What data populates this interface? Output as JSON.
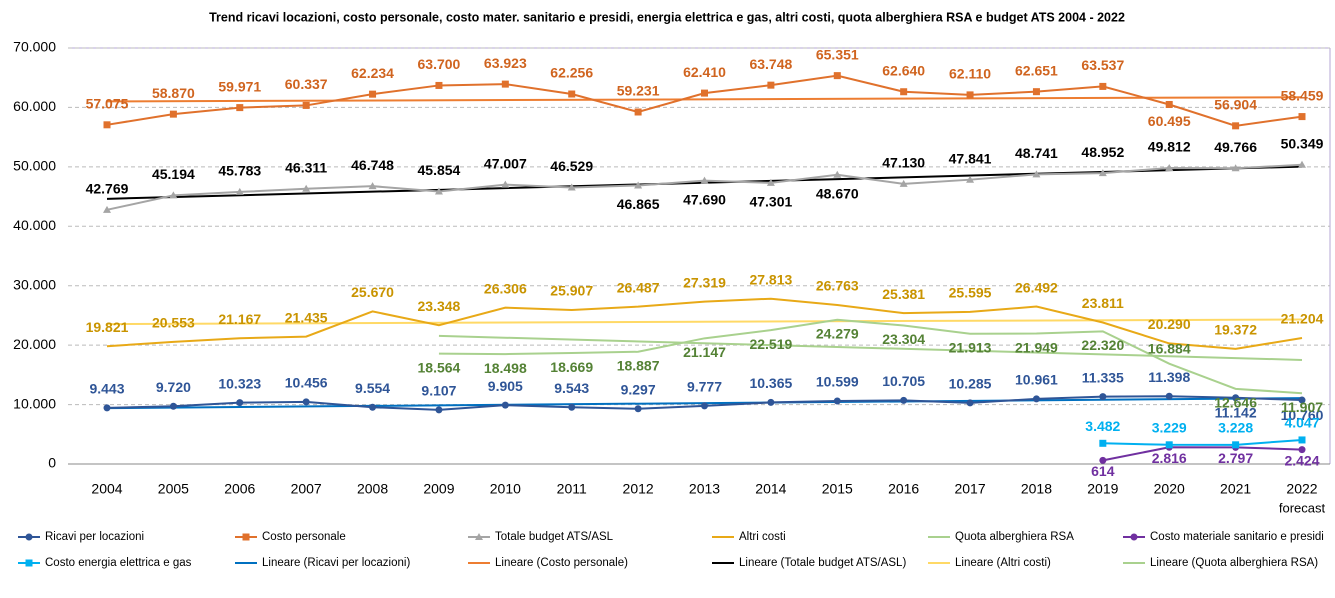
{
  "chart_data": {
    "type": "line",
    "title": "Trend ricavi locazioni, costo personale, costo mater. sanitario e presidi, energia elettrica e gas, altri costi, quota alberghiera RSA e budget ATS 2004 - 2022",
    "categories": [
      "2004",
      "2005",
      "2006",
      "2007",
      "2008",
      "2009",
      "2010",
      "2011",
      "2012",
      "2013",
      "2014",
      "2015",
      "2016",
      "2017",
      "2018",
      "2019",
      "2020",
      "2021",
      "2022"
    ],
    "x_note": "forecast",
    "ylim": [
      0,
      70000
    ],
    "yticks": [
      0,
      {
        "value": 10000,
        "label": "10.000"
      },
      {
        "value": 20000,
        "label": "20.000"
      },
      {
        "value": 30000,
        "label": "30.000"
      },
      {
        "value": 40000,
        "label": "40.000"
      },
      {
        "value": 50000,
        "label": "50.000"
      },
      {
        "value": 60000,
        "label": "60.000"
      },
      {
        "value": 70000,
        "label": "70.000"
      }
    ],
    "grid": true,
    "legend": "bottom",
    "series": [
      {
        "name": "Ricavi per locazioni",
        "color": "#2f5597",
        "label_color": "#2f5597",
        "marker": "circle",
        "values": [
          9443,
          9720,
          10323,
          10456,
          9554,
          9107,
          9905,
          9543,
          9297,
          9777,
          10365,
          10599,
          10705,
          10285,
          10961,
          11335,
          11398,
          11142,
          10760
        ],
        "value_labels": [
          "9.443",
          "9.720",
          "10.323",
          "10.456",
          "9.554",
          "9.107",
          "9.905",
          "9.543",
          "9.297",
          "9.777",
          "10.365",
          "10.599",
          "10.705",
          "10.285",
          "10.961",
          "11.335",
          "11.398",
          "11.142",
          "10.760"
        ]
      },
      {
        "name": "Costo personale",
        "color": "#e0712c",
        "label_color": "#d0641f",
        "marker": "square",
        "values": [
          57075,
          58870,
          59971,
          60337,
          62234,
          63700,
          63923,
          62256,
          59231,
          62410,
          63748,
          65351,
          62640,
          62110,
          62651,
          63537,
          60495,
          56904,
          58459
        ],
        "value_labels": [
          "57.075",
          "58.870",
          "59.971",
          "60.337",
          "62.234",
          "63.700",
          "63.923",
          "62.256",
          "59.231",
          "62.410",
          "63.748",
          "65.351",
          "62.640",
          "62.110",
          "62.651",
          "63.537",
          "60.495",
          "56.904",
          "58.459"
        ]
      },
      {
        "name": "Totale budget ATS/ASL",
        "color": "#a5a5a5",
        "label_color": "#000000",
        "marker": "triangle",
        "values": [
          42769,
          45194,
          45783,
          46311,
          46748,
          45854,
          47007,
          46529,
          46865,
          47690,
          47301,
          48670,
          47130,
          47841,
          48741,
          48952,
          49812,
          49766,
          50349
        ],
        "value_labels": [
          "42.769",
          "45.194",
          "45.783",
          "46.311",
          "46.748",
          "45.854",
          "47.007",
          "46.529",
          "46.865",
          "47.690",
          "47.301",
          "48.670",
          "47.130",
          "47.841",
          "48.741",
          "48.952",
          "49.812",
          "49.766",
          "50.349"
        ]
      },
      {
        "name": "Altri costi",
        "color": "#e8a917",
        "label_color": "#c99400",
        "marker": "none",
        "values": [
          19821,
          20553,
          21167,
          21435,
          25670,
          23348,
          26306,
          25907,
          26487,
          27319,
          27813,
          26763,
          25381,
          25595,
          26492,
          23811,
          20290,
          19372,
          21204
        ],
        "value_labels": [
          "19.821",
          "20.553",
          "21.167",
          "21.435",
          "25.670",
          "23.348",
          "26.306",
          "25.907",
          "26.487",
          "27.319",
          "27.813",
          "26.763",
          "25.381",
          "25.595",
          "26.492",
          "23.811",
          "20.290",
          "19.372",
          "21.204"
        ]
      },
      {
        "name": "Quota alberghiera RSA",
        "color": "#a9d18e",
        "label_color": "#548235",
        "marker": "none",
        "values": [
          null,
          null,
          null,
          null,
          null,
          18564,
          18498,
          18669,
          18887,
          21147,
          22519,
          24279,
          23304,
          21913,
          21949,
          22320,
          16884,
          12646,
          11907
        ],
        "value_labels": [
          null,
          null,
          null,
          null,
          null,
          "18.564",
          "18.498",
          "18.669",
          "18.887",
          "21.147",
          "22.519",
          "24.279",
          "23.304",
          "21.913",
          "21.949",
          "22.320",
          "16.884",
          "12.646",
          "11.907"
        ]
      },
      {
        "name": "Costo materiale sanitario e presidi",
        "color": "#7030a0",
        "label_color": "#7030a0",
        "marker": "circle",
        "values": [
          null,
          null,
          null,
          null,
          null,
          null,
          null,
          null,
          null,
          null,
          null,
          null,
          null,
          null,
          null,
          614,
          2816,
          2797,
          2424
        ],
        "value_labels": [
          null,
          null,
          null,
          null,
          null,
          null,
          null,
          null,
          null,
          null,
          null,
          null,
          null,
          null,
          null,
          "614",
          "2.816",
          "2.797",
          "2.424"
        ]
      },
      {
        "name": "Costo energia elettrica e gas",
        "color": "#00b0f0",
        "label_color": "#00b0f0",
        "marker": "square",
        "values": [
          null,
          null,
          null,
          null,
          null,
          null,
          null,
          null,
          null,
          null,
          null,
          null,
          null,
          null,
          null,
          3482,
          3229,
          3228,
          4047
        ],
        "value_labels": [
          null,
          null,
          null,
          null,
          null,
          null,
          null,
          null,
          null,
          null,
          null,
          null,
          null,
          null,
          null,
          "3.482",
          "3.229",
          "3.228",
          "4.047"
        ]
      }
    ],
    "trendlines": [
      {
        "name": "Lineare (Ricavi per locazioni)",
        "color": "#0070c0",
        "series": 0
      },
      {
        "name": "Lineare (Costo personale)",
        "color": "#ed7d31",
        "series": 1
      },
      {
        "name": "Lineare (Totale budget ATS/ASL)",
        "color": "#000000",
        "series": 2
      },
      {
        "name": "Lineare (Altri costi)",
        "color": "#ffd966",
        "series": 3
      },
      {
        "name": "Lineare (Quota alberghiera RSA)",
        "color": "#a9d18e",
        "series": 4
      }
    ]
  }
}
